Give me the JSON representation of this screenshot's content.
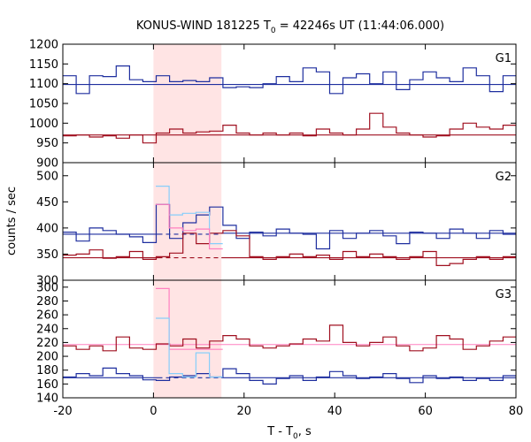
{
  "chart_data": {
    "type": "line",
    "title": {
      "prefix": "KONUS-WIND 181225 T",
      "sub": "0",
      "suffix": " = 42246s UT (11:44:06.000)"
    },
    "xlabel": {
      "prefix": "T - T",
      "sub": "0",
      "suffix": ", s"
    },
    "ylabel": "counts / sec",
    "xlim": [
      -20,
      80
    ],
    "x_ticks": [
      -20,
      0,
      20,
      40,
      60,
      80
    ],
    "highlight_interval": [
      0,
      15
    ],
    "colors": {
      "blue": "#1f2f9f",
      "red": "#a01020",
      "light_blue": "#87cefa",
      "pink": "#ff80c0",
      "highlight": "#ffe4e4"
    },
    "bin_width": 2.944,
    "x_start": -20,
    "panels": [
      {
        "label": "G1",
        "ylim": [
          900,
          1200
        ],
        "y_ticks": [
          900,
          950,
          1000,
          1050,
          1100,
          1150,
          1200
        ],
        "background_lines": [
          {
            "color": "blue",
            "style": "solid",
            "from": -20,
            "to": 80,
            "y": 1098
          },
          {
            "color": "red",
            "style": "solid",
            "from": -20,
            "to": 80,
            "y": 970
          }
        ],
        "series": [
          {
            "color": "blue",
            "values": [
              1120,
              1075,
              1120,
              1118,
              1145,
              1110,
              1105,
              1120,
              1105,
              1108,
              1105,
              1115,
              1090,
              1092,
              1090,
              1100,
              1118,
              1105,
              1140,
              1130,
              1075,
              1115,
              1125,
              1100,
              1130,
              1085,
              1110,
              1130,
              1115,
              1105,
              1140,
              1120,
              1080,
              1120,
              1145,
              1100,
              1135,
              1115,
              1110,
              1095,
              1100
            ]
          },
          {
            "color": "red",
            "values": [
              968,
              970,
              965,
              968,
              962,
              970,
              950,
              975,
              985,
              975,
              978,
              980,
              995,
              975,
              970,
              975,
              970,
              975,
              968,
              985,
              975,
              970,
              985,
              1025,
              990,
              975,
              970,
              965,
              968,
              985,
              1000,
              990,
              985,
              995,
              990,
              985,
              975,
              965,
              978,
              975,
              970
            ]
          }
        ]
      },
      {
        "label": "G2",
        "ylim": [
          300,
          525
        ],
        "y_ticks": [
          300,
          350,
          400,
          450,
          500
        ],
        "background_lines": [
          {
            "color": "blue",
            "style": "solid",
            "from": -20,
            "to": 1,
            "y": 388
          },
          {
            "color": "blue",
            "style": "dashed",
            "from": 1,
            "to": 15,
            "y": 388
          },
          {
            "color": "blue",
            "style": "solid",
            "from": 15,
            "to": 80,
            "y": 390
          },
          {
            "color": "red",
            "style": "solid",
            "from": -20,
            "to": 1,
            "y": 343
          },
          {
            "color": "red",
            "style": "dashed",
            "from": 1,
            "to": 15,
            "y": 343
          },
          {
            "color": "red",
            "style": "solid",
            "from": 15,
            "to": 80,
            "y": 343
          }
        ],
        "series": [
          {
            "color": "blue",
            "values": [
              392,
              375,
              400,
              395,
              388,
              383,
              372,
              445,
              380,
              410,
              425,
              440,
              405,
              380,
              392,
              385,
              398,
              390,
              388,
              360,
              395,
              380,
              390,
              395,
              385,
              370,
              392,
              390,
              380,
              398,
              390,
              380,
              395,
              388,
              390,
              395,
              390,
              385,
              400,
              390,
              395
            ]
          },
          {
            "color": "red",
            "values": [
              348,
              350,
              358,
              342,
              345,
              355,
              340,
              345,
              352,
              390,
              370,
              390,
              395,
              385,
              345,
              340,
              345,
              350,
              345,
              348,
              340,
              355,
              345,
              350,
              345,
              340,
              345,
              355,
              328,
              332,
              340,
              345,
              340,
              345,
              355,
              360,
              325,
              345,
              355,
              345,
              350
            ]
          },
          {
            "color": "light_blue",
            "from": 0.5,
            "to": 15.3,
            "values": [
              480,
              425,
              428,
              430,
              370
            ]
          },
          {
            "color": "pink",
            "from": 0.5,
            "to": 15.3,
            "values": [
              445,
              400,
              395,
              398,
              360
            ]
          }
        ]
      },
      {
        "label": "G3",
        "ylim": [
          140,
          310
        ],
        "y_ticks": [
          140,
          160,
          180,
          200,
          220,
          240,
          260,
          280,
          300
        ],
        "background_lines": [
          {
            "color": "blue",
            "style": "solid",
            "from": -20,
            "to": 1,
            "y": 169
          },
          {
            "color": "blue",
            "style": "dashed",
            "from": 1,
            "to": 15,
            "y": 169
          },
          {
            "color": "blue",
            "style": "solid",
            "from": 15,
            "to": 80,
            "y": 169
          },
          {
            "color": "pink",
            "style": "solid",
            "from": -20,
            "to": 80,
            "y": 217
          }
        ],
        "series": [
          {
            "color": "blue",
            "values": [
              170,
              175,
              172,
              183,
              175,
              172,
              166,
              165,
              170,
              172,
              175,
              170,
              182,
              175,
              165,
              160,
              168,
              172,
              165,
              170,
              178,
              172,
              168,
              170,
              175,
              168,
              162,
              172,
              168,
              170,
              165,
              168,
              165,
              172,
              170,
              165,
              172,
              168,
              175,
              168,
              172
            ]
          },
          {
            "color": "red",
            "values": [
              215,
              210,
              215,
              208,
              228,
              212,
              210,
              218,
              215,
              225,
              212,
              222,
              230,
              225,
              215,
              212,
              215,
              218,
              225,
              222,
              245,
              220,
              215,
              220,
              228,
              215,
              208,
              212,
              230,
              225,
              210,
              215,
              222,
              228,
              215,
              220,
              210,
              215,
              220,
              228,
              220
            ]
          },
          {
            "color": "pink",
            "from": 0.5,
            "to": 15.3,
            "values": [
              298,
              210,
              210,
              210,
              210
            ]
          },
          {
            "color": "light_blue",
            "from": 0.5,
            "to": 15.3,
            "values": [
              255,
              175,
              170,
              205,
              170
            ]
          }
        ]
      }
    ]
  }
}
